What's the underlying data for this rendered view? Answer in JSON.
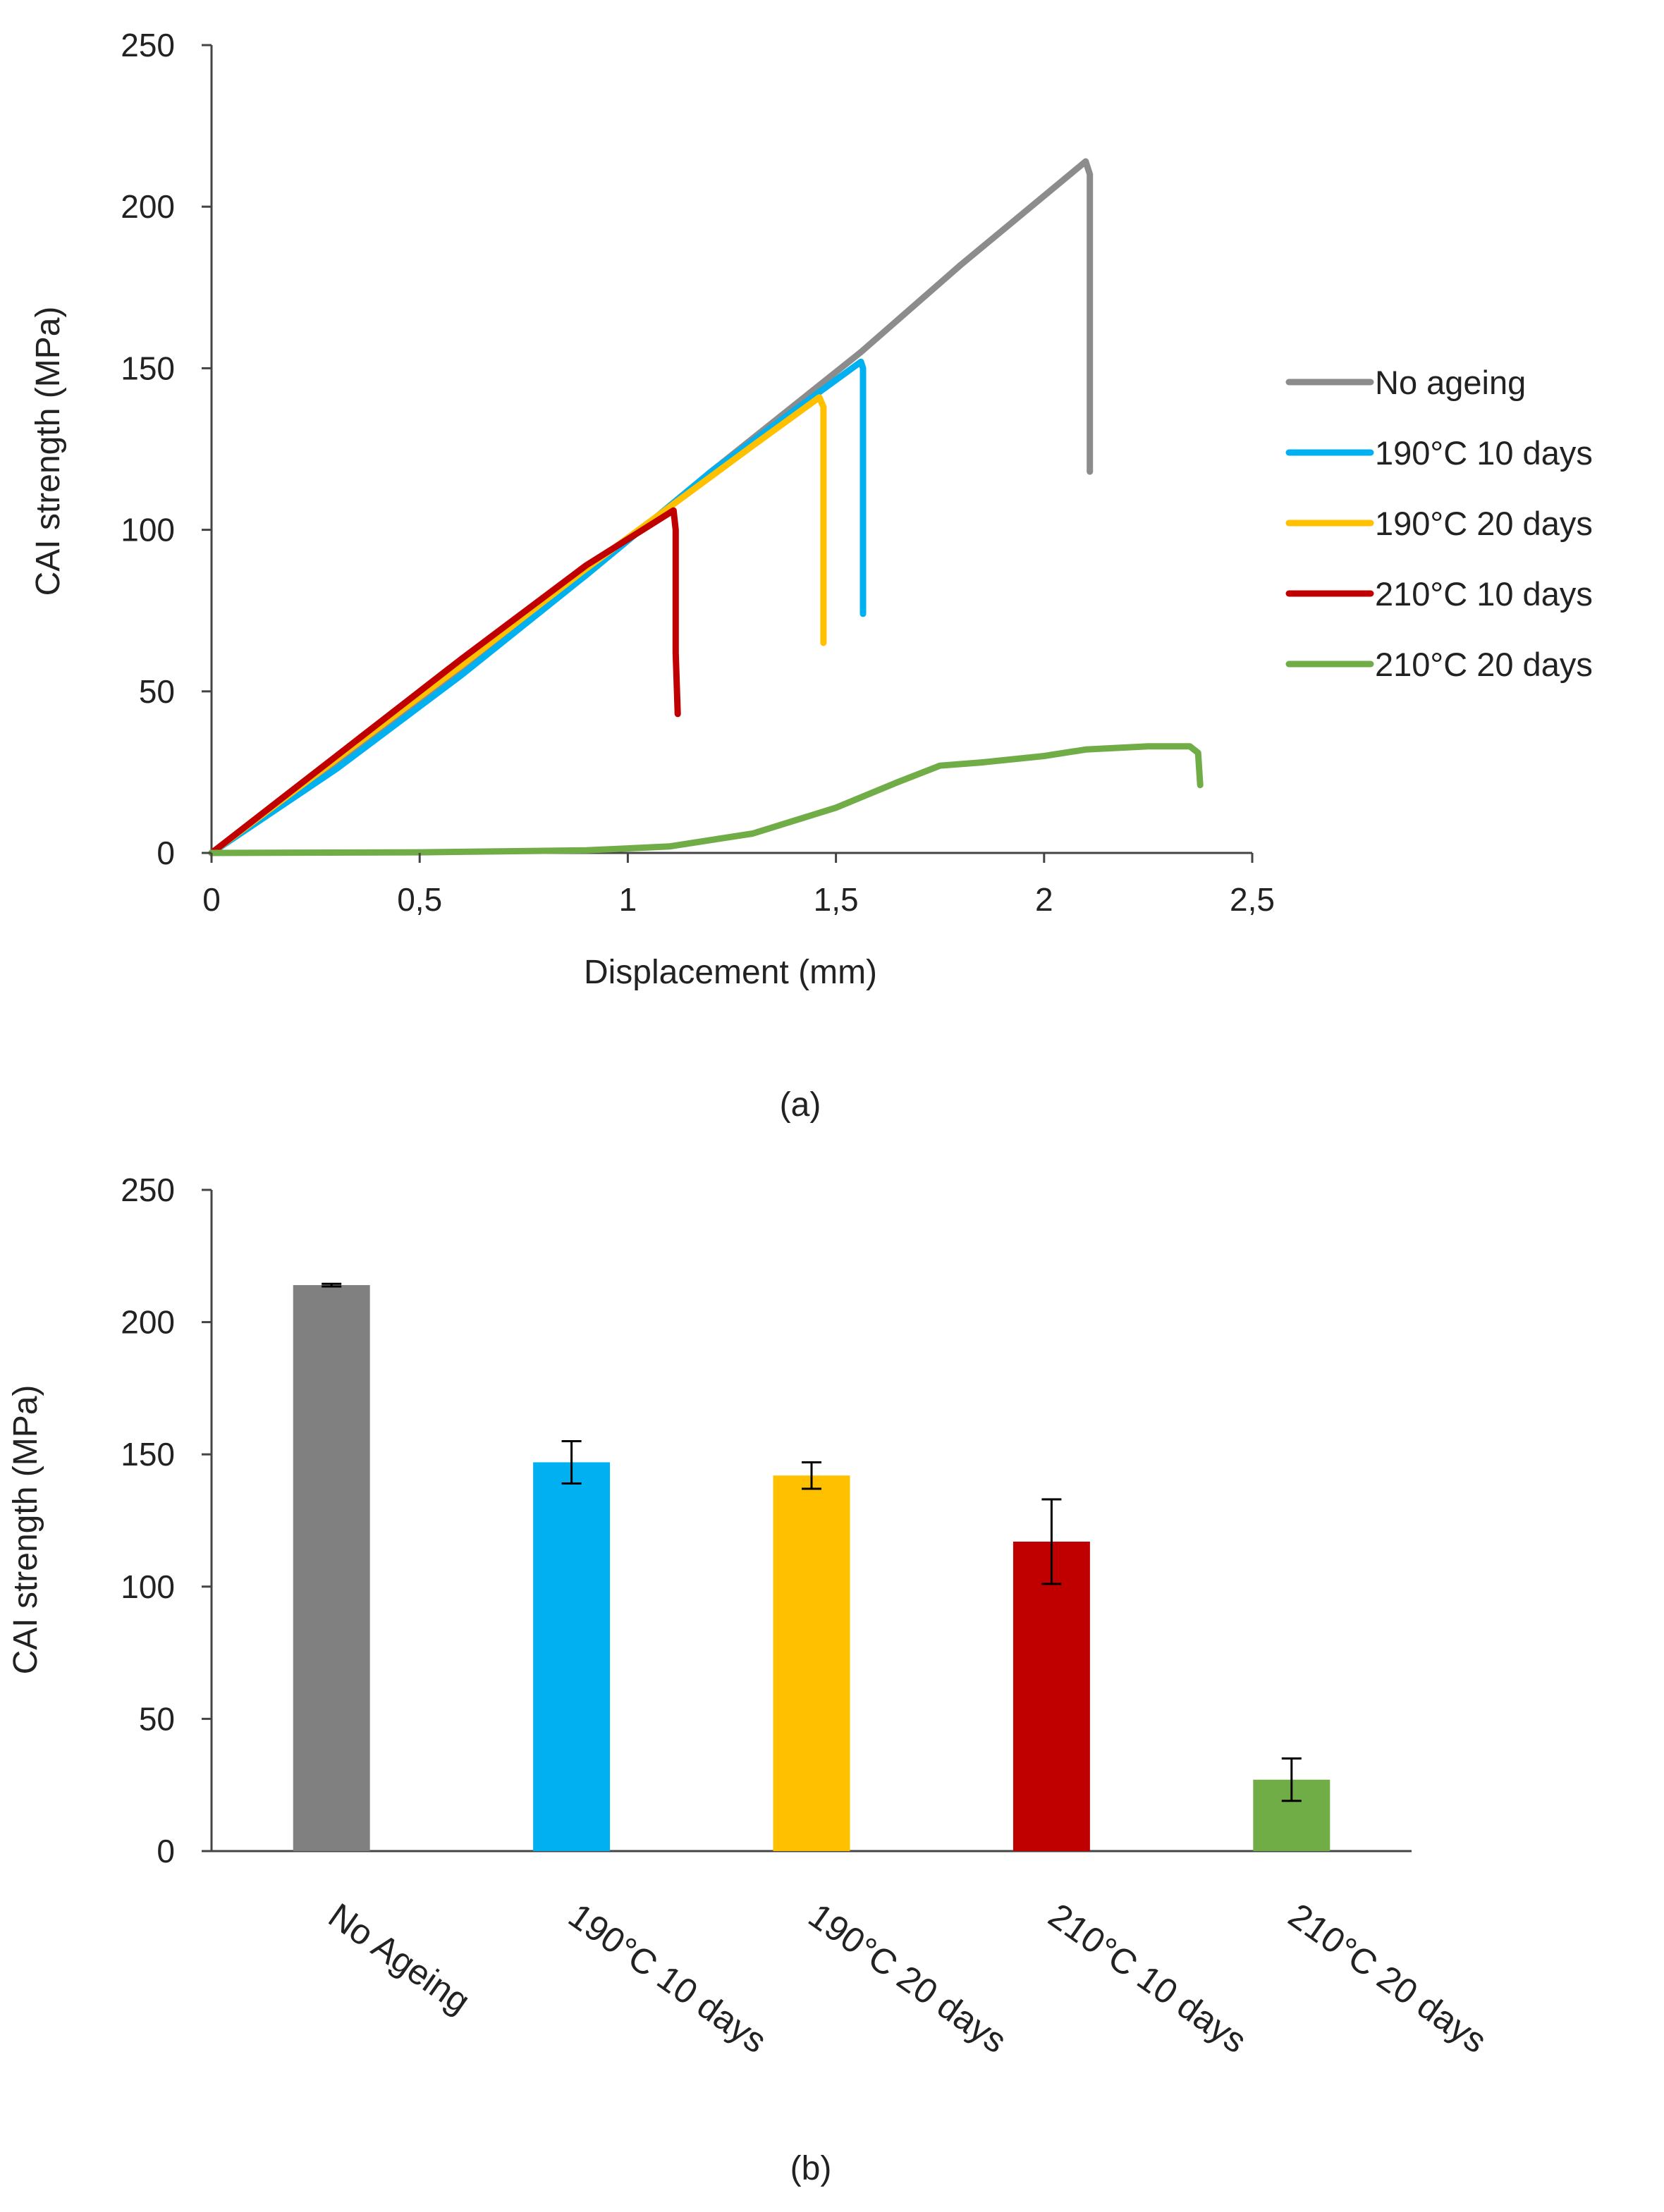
{
  "chart_data": [
    {
      "type": "line",
      "panel_label": "(a)",
      "xlabel": "Displacement (mm)",
      "ylabel": "CAI strength (MPa)",
      "xlim": [
        0,
        2.5
      ],
      "ylim": [
        0,
        250
      ],
      "x_ticks": [
        0,
        0.5,
        1,
        1.5,
        2,
        2.5
      ],
      "x_tick_labels": [
        "0",
        "0,5",
        "1",
        "1,5",
        "2",
        "2,5"
      ],
      "y_ticks": [
        0,
        50,
        100,
        150,
        200,
        250
      ],
      "y_tick_labels": [
        "0",
        "50",
        "100",
        "150",
        "200",
        "250"
      ],
      "legend_position": "right",
      "series": [
        {
          "name": "No ageing",
          "color": "#8c8c8c",
          "points": [
            [
              0,
              0
            ],
            [
              0.3,
              27
            ],
            [
              0.6,
              56
            ],
            [
              0.9,
              86
            ],
            [
              1.2,
              118
            ],
            [
              1.56,
              155
            ],
            [
              1.8,
              182
            ],
            [
              2.1,
              214
            ],
            [
              2.11,
              210
            ],
            [
              2.11,
              118
            ]
          ]
        },
        {
          "name": "190°C 10 days",
          "color": "#00b0f0",
          "points": [
            [
              0,
              0
            ],
            [
              0.3,
              26
            ],
            [
              0.6,
              55
            ],
            [
              0.9,
              86
            ],
            [
              1.2,
              118
            ],
            [
              1.4,
              137
            ],
            [
              1.56,
              152
            ],
            [
              1.565,
              150
            ],
            [
              1.565,
              74
            ]
          ]
        },
        {
          "name": "190°C 20 days",
          "color": "#ffc000",
          "points": [
            [
              0,
              0
            ],
            [
              0.3,
              29
            ],
            [
              0.6,
              58
            ],
            [
              0.9,
              88
            ],
            [
              1.1,
              107
            ],
            [
              1.3,
              126
            ],
            [
              1.46,
              141
            ],
            [
              1.47,
              138
            ],
            [
              1.47,
              65
            ]
          ]
        },
        {
          "name": "210°C 10 days",
          "color": "#c00000",
          "points": [
            [
              0,
              0
            ],
            [
              0.3,
              30
            ],
            [
              0.6,
              60
            ],
            [
              0.9,
              89
            ],
            [
              1.11,
              106
            ],
            [
              1.115,
              100
            ],
            [
              1.115,
              62
            ],
            [
              1.12,
              43
            ]
          ]
        },
        {
          "name": "210°C 20 days",
          "color": "#70ad47",
          "points": [
            [
              0,
              0
            ],
            [
              0.5,
              0.2
            ],
            [
              0.9,
              0.8
            ],
            [
              1.1,
              2
            ],
            [
              1.3,
              6
            ],
            [
              1.5,
              14
            ],
            [
              1.65,
              22
            ],
            [
              1.75,
              27
            ],
            [
              1.85,
              28
            ],
            [
              2.0,
              30
            ],
            [
              2.1,
              32
            ],
            [
              2.25,
              33
            ],
            [
              2.35,
              33
            ],
            [
              2.37,
              31
            ],
            [
              2.375,
              21
            ]
          ]
        }
      ]
    },
    {
      "type": "bar",
      "panel_label": "(b)",
      "ylabel": "CAI strength (MPa)",
      "ylim": [
        0,
        250
      ],
      "y_ticks": [
        0,
        50,
        100,
        150,
        200,
        250
      ],
      "y_tick_labels": [
        "0",
        "50",
        "100",
        "150",
        "200",
        "250"
      ],
      "categories": [
        "No Ageing",
        "190°C 10 days",
        "190°C 20 days",
        "210°C 10 days",
        "210°C 20 days"
      ],
      "values": [
        214,
        147,
        142,
        117,
        27
      ],
      "errors": [
        0.5,
        8,
        5,
        16,
        8
      ],
      "colors": [
        "#808080",
        "#00b0f0",
        "#ffc000",
        "#c00000",
        "#70ad47"
      ]
    }
  ]
}
